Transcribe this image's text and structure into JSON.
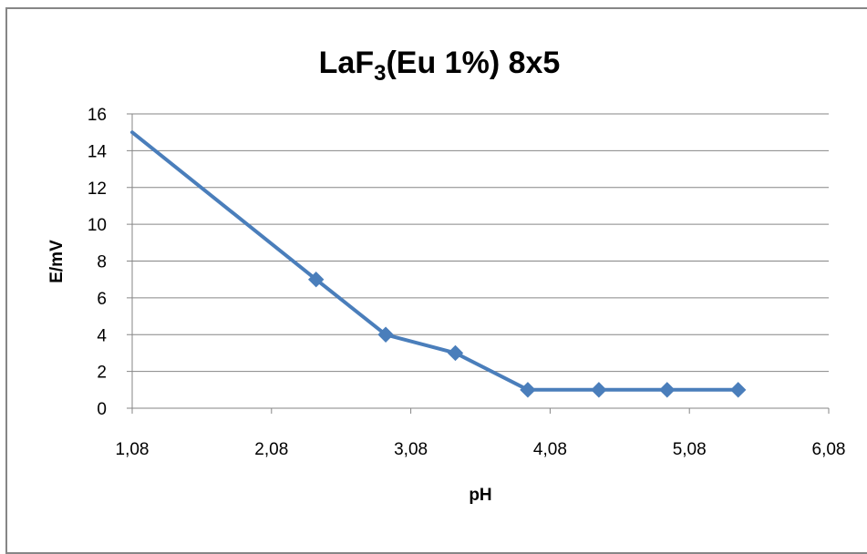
{
  "chart_data": {
    "type": "scatter",
    "title": {
      "main": "LaF",
      "subscript": "3",
      "rest": "(Eu 1%) 8x5"
    },
    "xlabel": "pH",
    "ylabel": "E/mV",
    "xlim": [
      1.08,
      6.08
    ],
    "ylim": [
      0,
      16
    ],
    "xticks": [
      1.08,
      2.08,
      3.08,
      4.08,
      5.08,
      6.08
    ],
    "xtick_labels": [
      "1,08",
      "2,08",
      "3,08",
      "4,08",
      "5,08",
      "6,08"
    ],
    "yticks": [
      0,
      2,
      4,
      6,
      8,
      10,
      12,
      14,
      16
    ],
    "ytick_labels": [
      "0",
      "2",
      "4",
      "6",
      "8",
      "10",
      "12",
      "14",
      "16"
    ],
    "grid": "horizontal",
    "legend": "none",
    "series": [
      {
        "x": [
          1.08,
          2.4,
          2.9,
          3.4,
          3.92,
          4.43,
          4.92,
          5.43
        ],
        "y": [
          15,
          7,
          4,
          3,
          1,
          1,
          1,
          1
        ],
        "markers": [
          false,
          true,
          true,
          true,
          true,
          true,
          true,
          true
        ],
        "color": "#4a7ebb"
      }
    ]
  }
}
